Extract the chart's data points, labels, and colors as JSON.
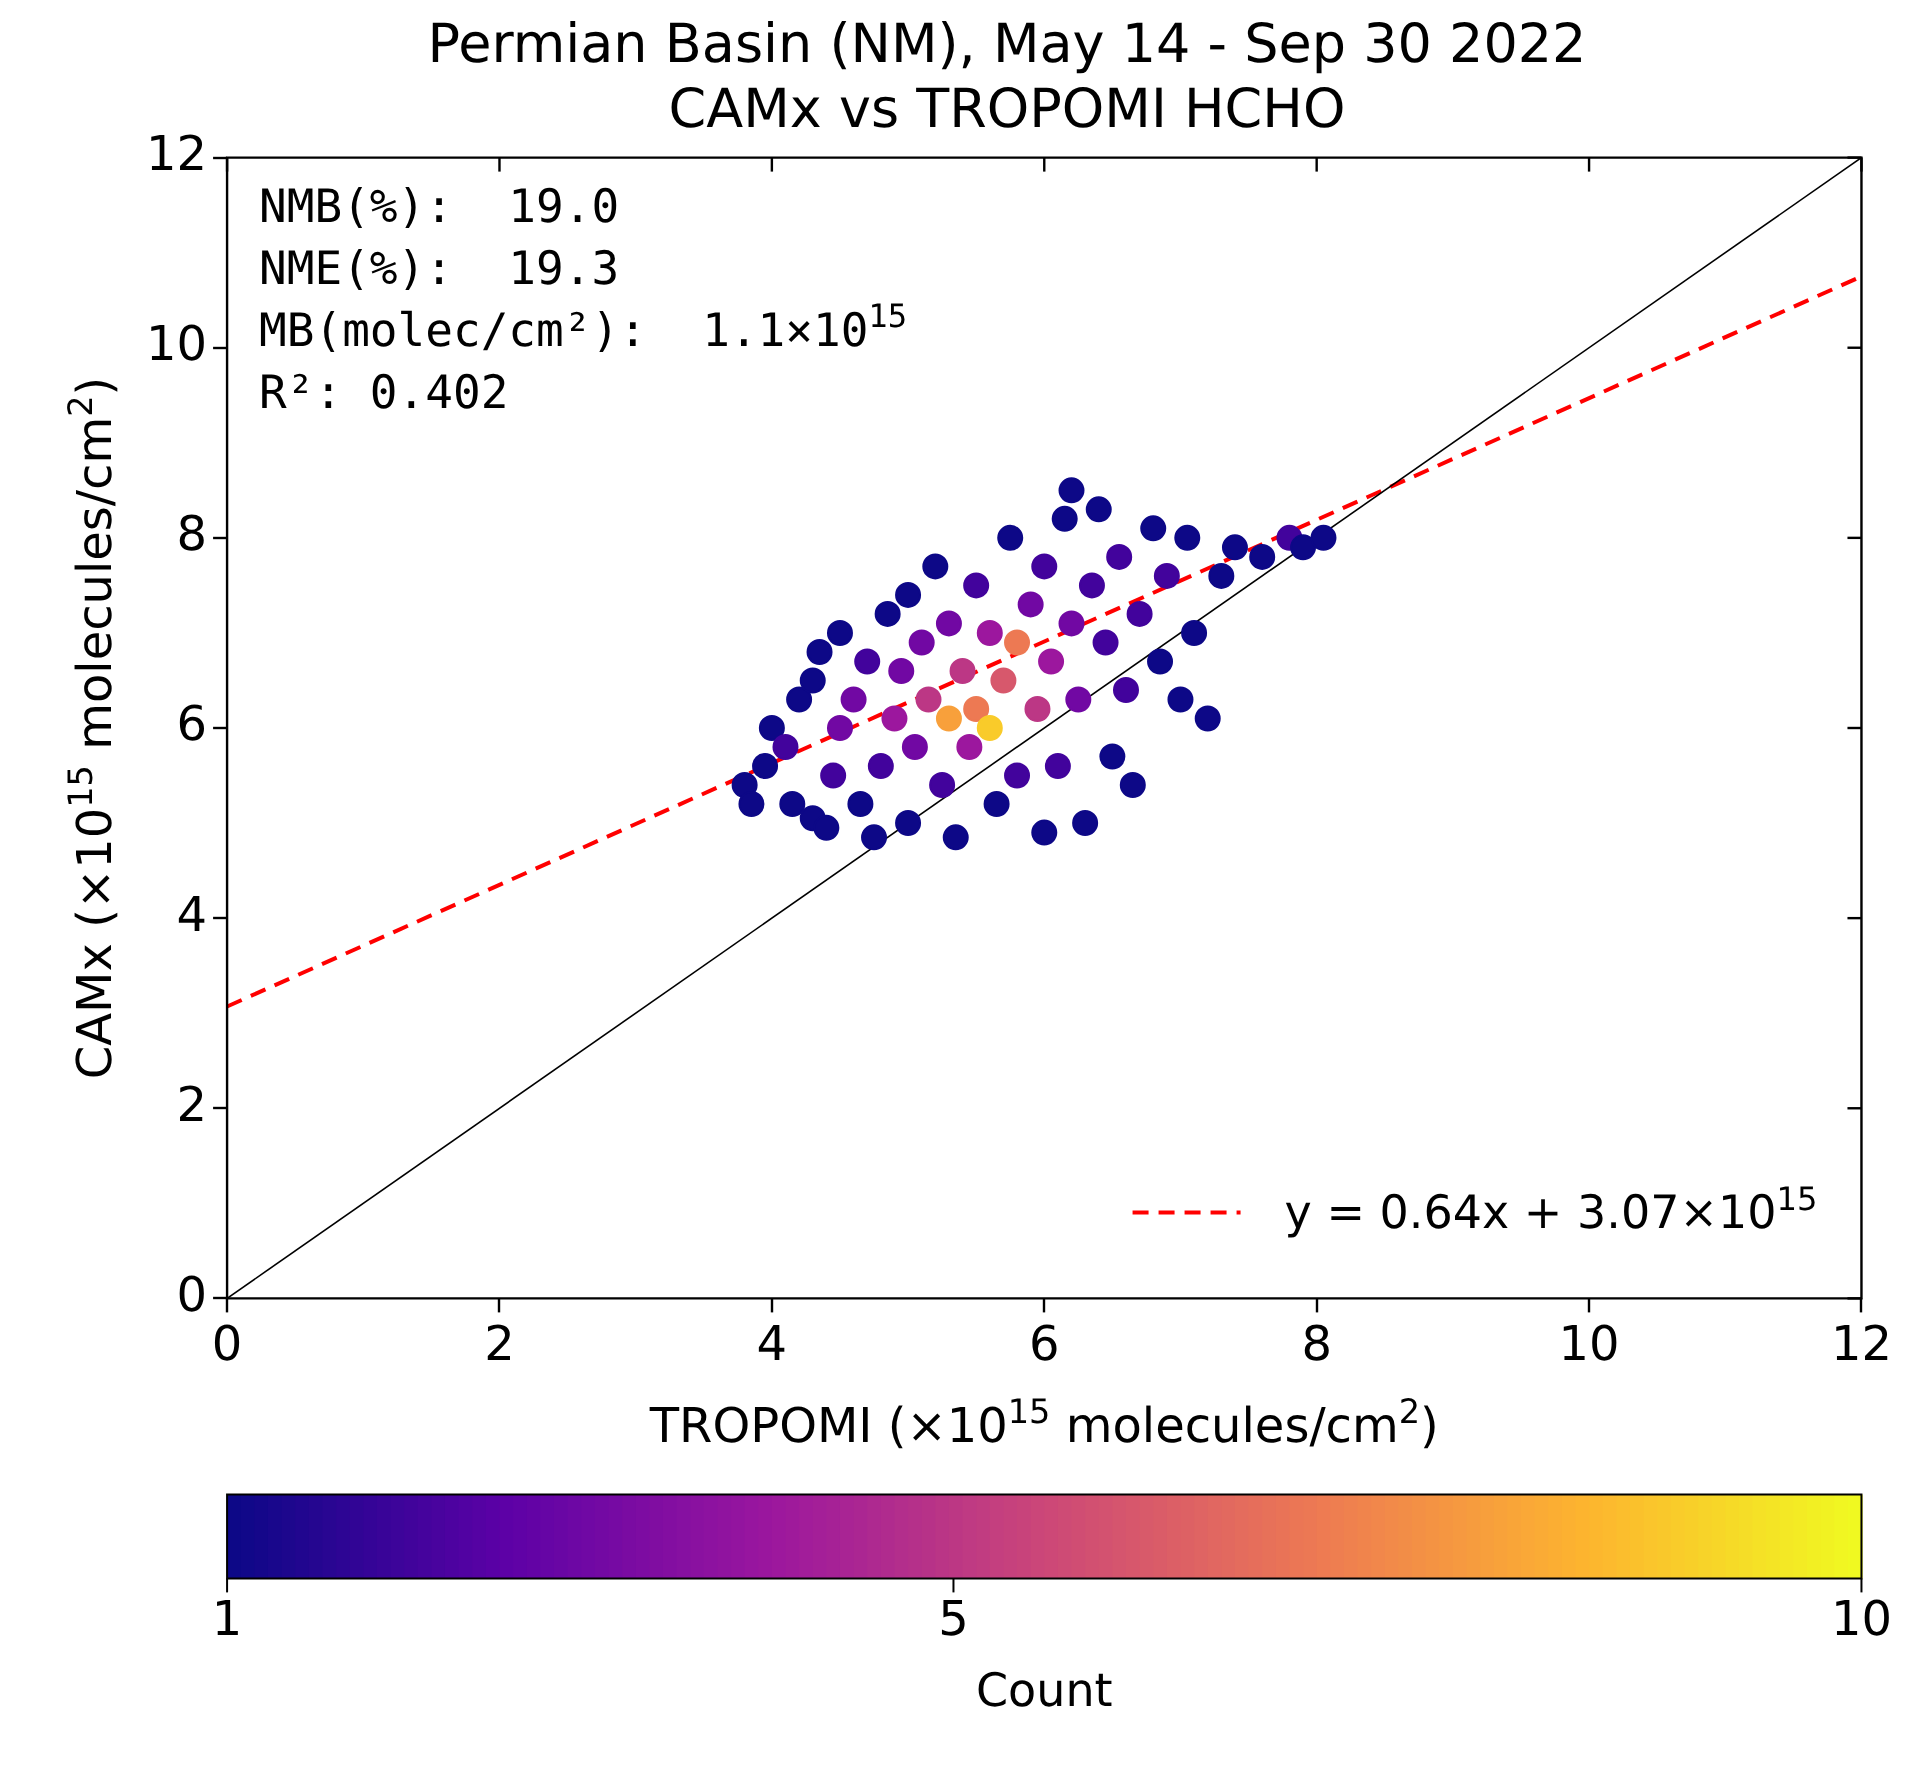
{
  "chart_data": {
    "type": "scatter",
    "title": "Permian Basin (NM), May 14 - Sep 30 2022",
    "subtitle": "CAMx vs TROPOMI HCHO",
    "xlabel": "TROPOMI (×10$^{15}$ molecules/cm$^{2}$)",
    "ylabel": "CAMx (×10$^{15}$ molecules/cm$^{2}$)",
    "clabel": "Count",
    "xlim": [
      0,
      12
    ],
    "ylim": [
      0,
      12
    ],
    "xticks": [
      0,
      2,
      4,
      6,
      8,
      10,
      12
    ],
    "yticks": [
      0,
      2,
      4,
      6,
      8,
      10,
      12
    ],
    "clim": [
      1,
      10
    ],
    "cticks": [
      1,
      5,
      10
    ],
    "grid": false,
    "legend": "bottom right",
    "annotations": [
      "NMB(%):  19.0",
      "NME(%):  19.3",
      "MB(molec/cm²):  1.1×10$^{15}$",
      "R²: 0.402"
    ],
    "series": [
      {
        "marker": "circle",
        "x": [
          3.8,
          3.85,
          3.95,
          4.0,
          4.1,
          4.15,
          4.2,
          4.3,
          4.3,
          4.35,
          4.4,
          4.45,
          4.5,
          4.5,
          4.6,
          4.65,
          4.7,
          4.75,
          4.8,
          4.85,
          4.9,
          4.95,
          5.0,
          5.0,
          5.05,
          5.1,
          5.15,
          5.2,
          5.25,
          5.3,
          5.3,
          5.35,
          5.4,
          5.45,
          5.5,
          5.5,
          5.6,
          5.6,
          5.65,
          5.7,
          5.75,
          5.8,
          5.8,
          5.9,
          5.95,
          6.0,
          6.0,
          6.05,
          6.1,
          6.15,
          6.2,
          6.2,
          6.25,
          6.3,
          6.35,
          6.4,
          6.45,
          6.5,
          6.55,
          6.6,
          6.65,
          6.7,
          6.8,
          6.85,
          6.9,
          7.0,
          7.05,
          7.1,
          7.2,
          7.3,
          7.4,
          7.6,
          7.8,
          7.9,
          8.05
        ],
        "values": [
          5.4,
          5.2,
          5.6,
          6.0,
          5.8,
          5.2,
          6.3,
          6.5,
          5.05,
          6.8,
          4.95,
          5.5,
          6.0,
          7.0,
          6.3,
          5.2,
          6.7,
          4.85,
          5.6,
          7.2,
          6.1,
          6.6,
          5.0,
          7.4,
          5.8,
          6.9,
          6.3,
          7.7,
          5.4,
          6.1,
          7.1,
          4.85,
          6.6,
          5.8,
          7.5,
          6.2,
          6.0,
          7.0,
          5.2,
          6.5,
          8.0,
          6.9,
          5.5,
          7.3,
          6.2,
          7.7,
          4.9,
          6.7,
          5.6,
          8.2,
          7.1,
          8.5,
          6.3,
          5.0,
          7.5,
          8.3,
          6.9,
          5.7,
          7.8,
          6.4,
          5.4,
          7.2,
          8.1,
          6.7,
          7.6,
          6.3,
          8.0,
          7.0,
          6.1,
          7.6,
          7.9,
          7.8,
          8.0,
          7.9,
          8.0
        ],
        "cvalues": [
          1,
          1,
          1,
          1,
          2,
          1,
          1,
          1,
          1,
          1,
          1,
          2,
          3,
          1,
          3,
          1,
          2,
          1,
          2,
          1,
          4,
          3,
          1,
          1,
          3,
          3,
          5,
          1,
          2,
          8,
          3,
          1,
          5,
          4,
          2,
          7,
          9,
          4,
          1,
          6,
          1,
          7,
          2,
          3,
          5,
          2,
          1,
          4,
          2,
          1,
          3,
          1,
          3,
          1,
          2,
          1,
          2,
          1,
          2,
          2,
          1,
          2,
          1,
          1,
          2,
          1,
          1,
          1,
          1,
          1,
          1,
          1,
          2,
          1,
          1
        ],
        "colors": [
          "#0d0887",
          "#0d0887",
          "#0d0887",
          "#0d0887",
          "#42039c",
          "#0d0887",
          "#0d0887",
          "#0d0887",
          "#0d0887",
          "#0d0887",
          "#0d0887",
          "#42039c",
          "#7108a3",
          "#0d0887",
          "#7108a3",
          "#0d0887",
          "#42039c",
          "#0d0887",
          "#42039c",
          "#0d0887",
          "#9c179e",
          "#7108a3",
          "#0d0887",
          "#0d0887",
          "#7108a3",
          "#7108a3",
          "#bc3785",
          "#0d0887",
          "#42039c",
          "#f8a03b",
          "#7108a3",
          "#0d0887",
          "#bc3785",
          "#9c179e",
          "#42039c",
          "#ed7953",
          "#f9cb2a",
          "#9c179e",
          "#0d0887",
          "#d7586c",
          "#0d0887",
          "#ed7953",
          "#42039c",
          "#7108a3",
          "#bc3785",
          "#42039c",
          "#0d0887",
          "#9c179e",
          "#42039c",
          "#0d0887",
          "#7108a3",
          "#0d0887",
          "#7108a3",
          "#0d0887",
          "#42039c",
          "#0d0887",
          "#42039c",
          "#0d0887",
          "#42039c",
          "#42039c",
          "#0d0887",
          "#42039c",
          "#0d0887",
          "#0d0887",
          "#42039c",
          "#0d0887",
          "#0d0887",
          "#0d0887",
          "#0d0887",
          "#0d0887",
          "#0d0887",
          "#0d0887",
          "#42039c",
          "#0d0887",
          "#0d0887"
        ]
      },
      {
        "type": "line",
        "x": [
          0,
          12
        ],
        "values": [
          0,
          12
        ],
        "color": "#000000"
      },
      {
        "type": "line",
        "name": "y = 0.64x + 3.07×10$^{15}$",
        "x": [
          0,
          12
        ],
        "values": [
          3.07,
          10.75
        ],
        "color": "#ff0000",
        "line_style": "dashed"
      }
    ]
  }
}
